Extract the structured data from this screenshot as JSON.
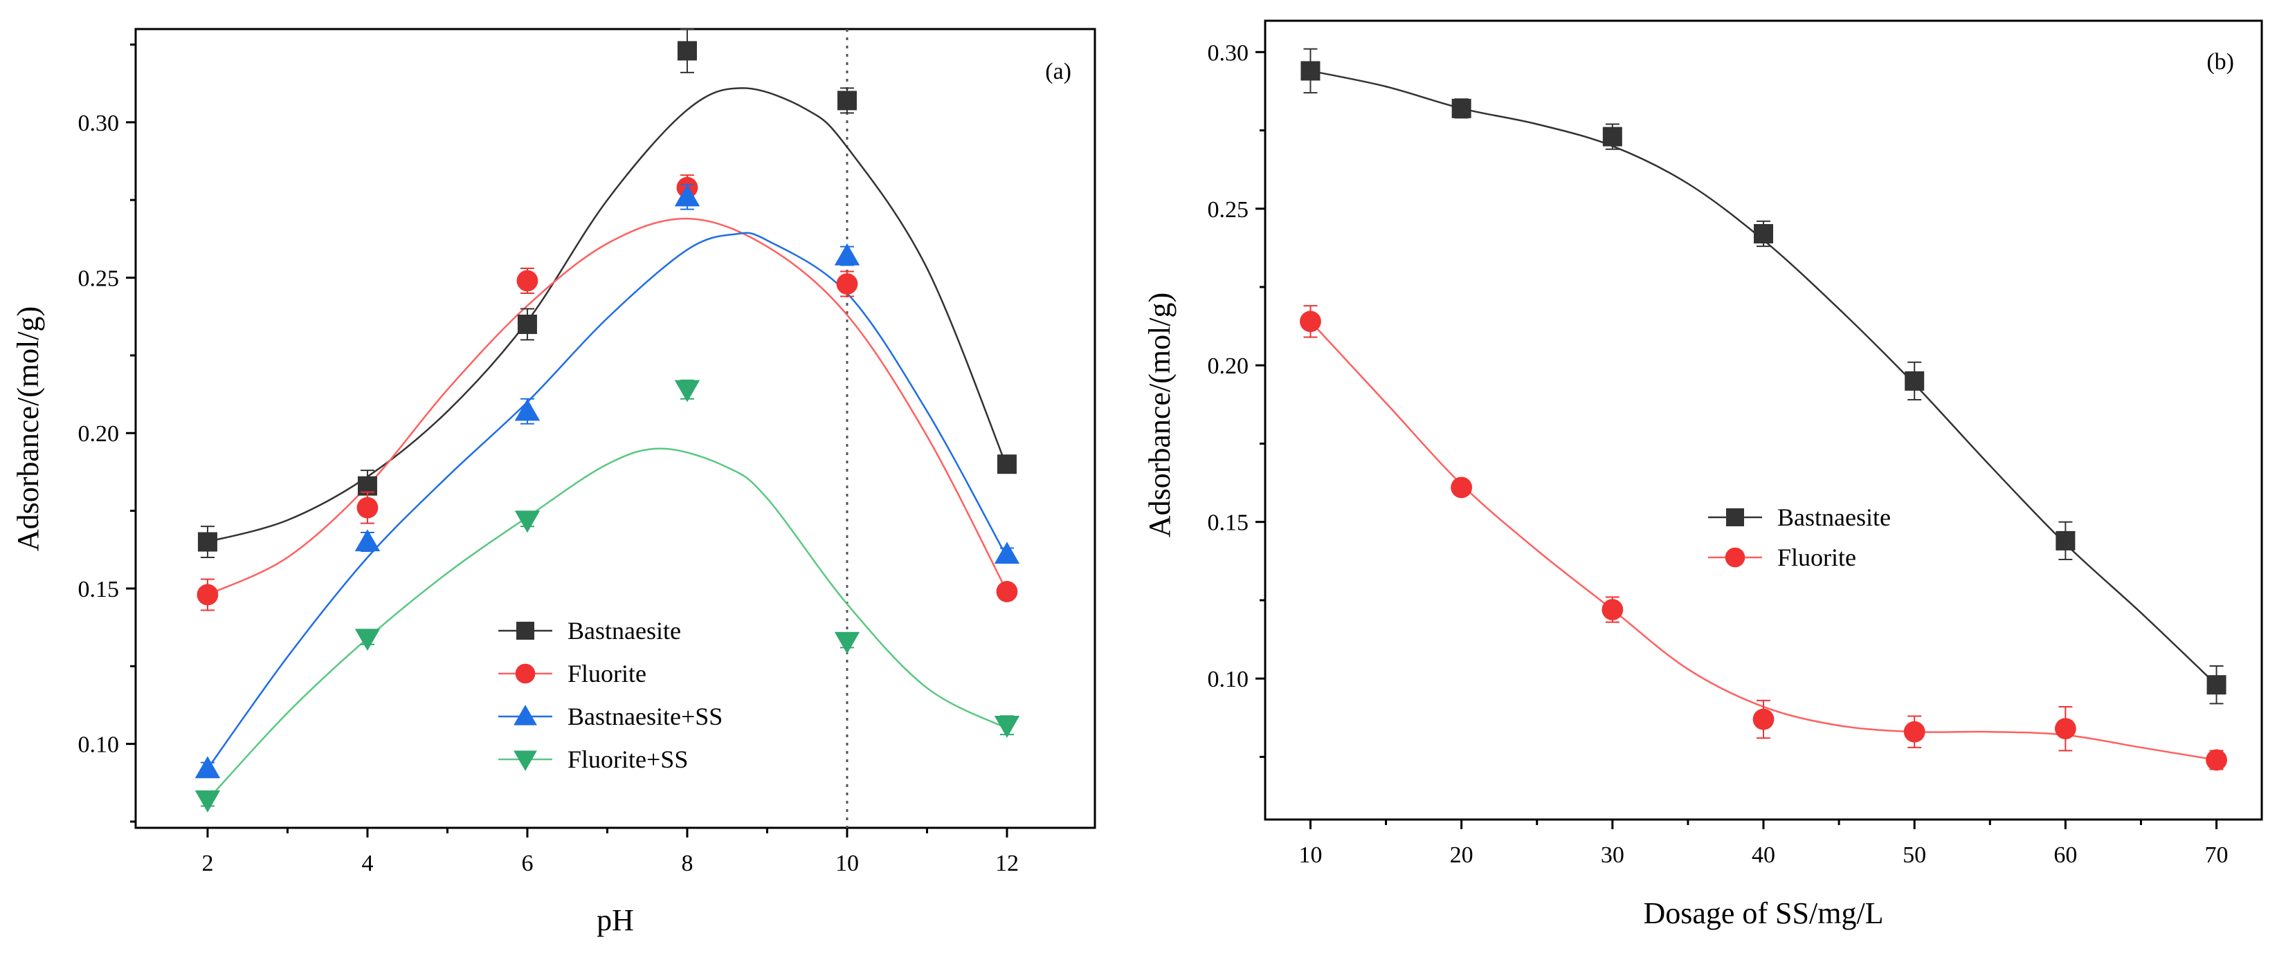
{
  "chart_data": [
    {
      "panel": "(a)",
      "type": "scatter",
      "xlabel": "pH",
      "ylabel": "Adsorbance/(mol/g)",
      "xlim": [
        1.1,
        13.1
      ],
      "ylim": [
        0.073,
        0.33
      ],
      "xticks": [
        2,
        4,
        6,
        8,
        10,
        12
      ],
      "xtick_labels": [
        "2",
        "4",
        "6",
        "8",
        "10",
        "12"
      ],
      "yticks": [
        0.1,
        0.15,
        0.2,
        0.25,
        0.3
      ],
      "ytick_labels": [
        "0.10",
        "0.15",
        "0.20",
        "0.25",
        "0.30"
      ],
      "reference_line_x": 10,
      "legend_position": "bottom-center",
      "series": [
        {
          "name": "Bastnaesite",
          "marker": "square",
          "color": "#333333",
          "x": [
            2,
            4,
            6,
            8,
            10,
            12
          ],
          "y": [
            0.165,
            0.183,
            0.235,
            0.323,
            0.307,
            0.19
          ],
          "err": [
            0.005,
            0.005,
            0.005,
            0.007,
            0.004,
            0.002
          ],
          "fit_x": [
            2,
            3,
            4,
            5,
            6,
            7,
            8,
            8.7,
            9.5,
            10,
            11,
            12
          ],
          "fit_y": [
            0.165,
            0.172,
            0.186,
            0.207,
            0.236,
            0.275,
            0.304,
            0.311,
            0.304,
            0.292,
            0.253,
            0.189
          ]
        },
        {
          "name": "Fluorite",
          "marker": "circle",
          "color": "#f03232",
          "x": [
            2,
            4,
            6,
            8,
            10,
            12
          ],
          "y": [
            0.148,
            0.176,
            0.249,
            0.279,
            0.248,
            0.149
          ],
          "err": [
            0.005,
            0.005,
            0.004,
            0.004,
            0.004,
            0.002
          ],
          "fit_x": [
            2,
            3,
            4,
            5,
            6,
            7,
            8,
            9,
            10,
            11,
            12
          ],
          "fit_y": [
            0.148,
            0.16,
            0.183,
            0.214,
            0.241,
            0.261,
            0.269,
            0.26,
            0.238,
            0.199,
            0.149
          ],
          "fit_color": "#ff6060"
        },
        {
          "name": "Bastnaesite+SS",
          "marker": "triangle-up",
          "color": "#1e6ee6",
          "x": [
            2,
            4,
            6,
            8,
            10,
            12
          ],
          "y": [
            0.092,
            0.165,
            0.207,
            0.276,
            0.257,
            0.161
          ],
          "err": [
            0.002,
            0.003,
            0.004,
            0.004,
            0.003,
            0.002
          ],
          "fit_x": [
            2,
            3,
            4,
            5,
            6,
            7,
            8,
            8.6,
            9,
            10,
            11,
            12
          ],
          "fit_y": [
            0.092,
            0.128,
            0.16,
            0.186,
            0.21,
            0.237,
            0.259,
            0.264,
            0.262,
            0.245,
            0.207,
            0.16
          ]
        },
        {
          "name": "Fluorite+SS",
          "marker": "triangle-down",
          "color": "#2eaa6e",
          "x": [
            2,
            4,
            6,
            8,
            10,
            12
          ],
          "y": [
            0.082,
            0.134,
            0.172,
            0.214,
            0.133,
            0.106
          ],
          "err": [
            0.002,
            0.002,
            0.002,
            0.003,
            0.002,
            0.003
          ],
          "fit_x": [
            2,
            3,
            4,
            5,
            6,
            7,
            7.7,
            8.5,
            9,
            10,
            11,
            12
          ],
          "fit_y": [
            0.082,
            0.11,
            0.134,
            0.155,
            0.173,
            0.19,
            0.195,
            0.189,
            0.179,
            0.145,
            0.118,
            0.105
          ],
          "fit_color": "#5ac882"
        }
      ]
    },
    {
      "panel": "(b)",
      "type": "scatter",
      "xlabel": "Dosage of SS/mg/L",
      "ylabel": "Adsorbance/(mol/g)",
      "xlim": [
        7,
        73
      ],
      "ylim": [
        0.055,
        0.31
      ],
      "xticks": [
        10,
        20,
        30,
        40,
        50,
        60,
        70
      ],
      "xtick_labels": [
        "10",
        "20",
        "30",
        "40",
        "50",
        "60",
        "70"
      ],
      "yticks": [
        0.1,
        0.15,
        0.2,
        0.25,
        0.3
      ],
      "ytick_labels": [
        "0.10",
        "0.15",
        "0.20",
        "0.25",
        "0.30"
      ],
      "legend_position": "middle-right",
      "series": [
        {
          "name": "Bastnaesite",
          "marker": "square",
          "color": "#333333",
          "x": [
            10,
            20,
            30,
            40,
            50,
            60,
            70
          ],
          "y": [
            0.294,
            0.282,
            0.273,
            0.242,
            0.195,
            0.144,
            0.098
          ],
          "err": [
            0.007,
            0.003,
            0.004,
            0.004,
            0.006,
            0.006,
            0.006
          ],
          "fit_x": [
            10,
            15,
            20,
            25,
            30,
            35,
            40,
            45,
            50,
            55,
            60,
            65,
            70
          ],
          "fit_y": [
            0.294,
            0.289,
            0.282,
            0.277,
            0.27,
            0.258,
            0.24,
            0.218,
            0.194,
            0.168,
            0.143,
            0.121,
            0.098
          ]
        },
        {
          "name": "Fluorite",
          "marker": "circle",
          "color": "#f03232",
          "x": [
            10,
            20,
            30,
            40,
            50,
            60,
            70
          ],
          "y": [
            0.214,
            0.161,
            0.122,
            0.087,
            0.083,
            0.084,
            0.074
          ],
          "err": [
            0.005,
            0.002,
            0.004,
            0.006,
            0.005,
            0.007,
            0.003
          ],
          "fit_x": [
            10,
            15,
            20,
            25,
            30,
            35,
            40,
            45,
            50,
            55,
            60,
            65,
            70
          ],
          "fit_y": [
            0.214,
            0.188,
            0.162,
            0.141,
            0.122,
            0.103,
            0.091,
            0.085,
            0.083,
            0.083,
            0.082,
            0.078,
            0.074
          ],
          "fit_color": "#ff6060"
        }
      ]
    }
  ]
}
